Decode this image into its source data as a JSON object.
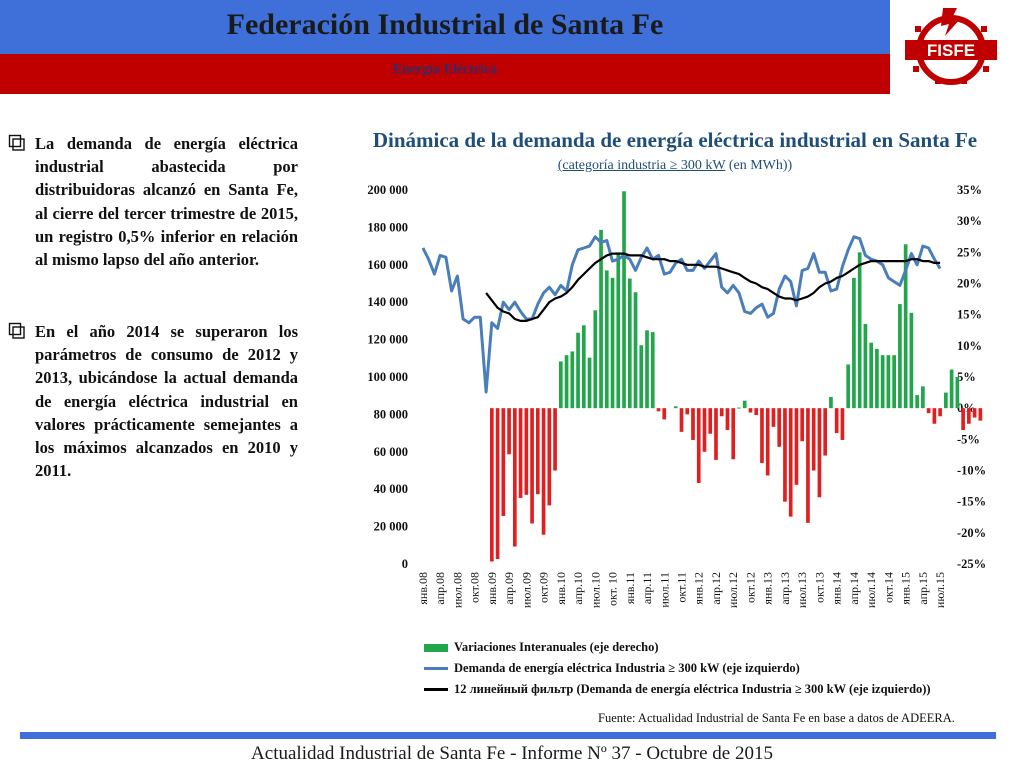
{
  "header": {
    "title": "Federación Industrial de Santa Fe",
    "subtitle": "Energía Eléctrica",
    "logo_text": "FISFE"
  },
  "paragraphs": [
    "La demanda de energía eléctrica industrial abastecida por distribuidoras alcanzó en Santa Fe, al cierre del tercer trimestre de 2015, un registro 0,5% inferior en relación al mismo lapso del año anterior.",
    "En el año 2014 se superaron los parámetros de consumo de 2012 y 2013, ubicándose la actual demanda de energía eléctrica industrial en valores prácticamente semejantes a los máximos alcanzados en 2010 y 2011."
  ],
  "chart_title": "Dinámica de la demanda de energía eléctrica industrial en Santa Fe",
  "chart_subtitle_underlined": "(categoría industria ≥ 300 kW",
  "chart_subtitle_rest": " (en MWh))",
  "legend": [
    "Variaciones Interanuales (eje derecho)",
    "Demanda de energía eléctrica Industria ≥ 300 kW (eje izquierdo)",
    "12 линейный фильтр (Demanda de energía eléctrica Industria ≥ 300 kW (eje izquierdo))"
  ],
  "source": "Fuente: Actualidad Industrial de Santa Fe en base a datos de ADEERA.",
  "footer": "Actualidad Industrial de Santa Fe - Informe Nº 37 - Octubre de 2015",
  "colors": {
    "bar_positive": "#21a64b",
    "bar_negative": "#e02020",
    "demand_line": "#4a7ebb",
    "filter_line": "#000000",
    "title": "#1f4e79"
  },
  "chart_data": {
    "type": "bar",
    "combo": [
      "bar",
      "line",
      "line"
    ],
    "x_tick_labels": [
      "янв.08",
      "апр.08",
      "июл.08",
      "окт.08",
      "янв.09",
      "апр.09",
      "июл.09",
      "окт.09",
      "янв.10",
      "апр.10",
      "июл.10",
      "окт. 10",
      "янв.11",
      "апр.11",
      "июл.11",
      "окт.11",
      "янв.12",
      "апр.12",
      "июл.12",
      "окт.12",
      "янв.13",
      "апр.13",
      "июл.13",
      "окт.13",
      "янв.14",
      "апр.14",
      "июл.14",
      "окт.14",
      "янв.15",
      "апр.15",
      "июл.15"
    ],
    "y_left": {
      "min": 0,
      "max": 200000,
      "step": 20000,
      "tick_labels": [
        "0",
        "20 000",
        "40 000",
        "60 000",
        "80 000",
        "100 000",
        "120 000",
        "140 000",
        "160 000",
        "180 000",
        "200 000"
      ]
    },
    "y_right": {
      "min": -25,
      "max": 35,
      "step": 5,
      "tick_labels": [
        "-25%",
        "-20%",
        "-15%",
        "-10%",
        "-5%",
        "0%",
        "5%",
        "10%",
        "15%",
        "20%",
        "25%",
        "30%",
        "35%"
      ]
    },
    "series": [
      {
        "name": "Variaciones Interanuales (eje derecho)",
        "axis": "right",
        "kind": "bar",
        "values": [
          null,
          null,
          null,
          null,
          null,
          null,
          null,
          null,
          null,
          null,
          null,
          null,
          -24.6,
          -24.2,
          -17.3,
          -7.4,
          -22.2,
          -14.4,
          -13.9,
          -18.5,
          -13.8,
          -20.3,
          -15.6,
          -10.0,
          7.5,
          8.5,
          9.1,
          12.1,
          13.3,
          8.1,
          15.7,
          28.6,
          22.1,
          20.9,
          25.0,
          34.8,
          20.8,
          18.6,
          10.1,
          12.5,
          12.2,
          -0.5,
          -1.8,
          0,
          0.3,
          -3.8,
          -1.0,
          -5.1,
          -12.0,
          -7.0,
          -4.1,
          -8.3,
          -1.3,
          -3.5,
          -8.2,
          0.1,
          1.2,
          -0.7,
          -1.1,
          -8.8,
          -10.8,
          -3.0,
          -6.2,
          -15.0,
          -17.4,
          -12.3,
          -5.3,
          -18.4,
          -10.0,
          -14.3,
          -7.6,
          1.8,
          -4.0,
          -5.1,
          7.0,
          20.9,
          25.0,
          13.5,
          10.5,
          9.5,
          8.5,
          8.5,
          8.5,
          16.7,
          26.3,
          15.3,
          2.1,
          3.5,
          -0.8,
          -2.5,
          -1.3,
          2.5,
          6.2,
          5.0,
          -3.5,
          -2.5,
          -1.5,
          -2.0
        ]
      },
      {
        "name": "Demanda de energía eléctrica Industria ≥ 300 kW (eje izquierdo)",
        "axis": "left",
        "kind": "line",
        "values": [
          169000,
          163000,
          155000,
          165000,
          164000,
          146000,
          154000,
          131000,
          129000,
          132000,
          132000,
          92000,
          129000,
          126000,
          140000,
          136000,
          140000,
          135000,
          131000,
          131000,
          139000,
          145000,
          148000,
          144000,
          149000,
          146000,
          160000,
          168000,
          169000,
          170000,
          175000,
          172000,
          173000,
          162000,
          163000,
          165000,
          163000,
          157000,
          164000,
          169000,
          163000,
          165000,
          155000,
          156000,
          161000,
          163000,
          157000,
          157000,
          162000,
          158000,
          162000,
          166000,
          148000,
          145000,
          149000,
          145000,
          135000,
          134000,
          137000,
          139000,
          132000,
          134000,
          147000,
          154000,
          151000,
          138000,
          157000,
          158000,
          166000,
          156000,
          156000,
          146000,
          147000,
          159000,
          168000,
          175000,
          174000,
          165000,
          163000,
          162000,
          160000,
          153000,
          151000,
          149000,
          157000,
          166000,
          160000,
          170000,
          169000,
          163000,
          158000
        ]
      },
      {
        "name": "12 линейный фильтр (Demanda de energía eléctrica Industria ≥ 300 kW (eje izquierdo))",
        "axis": "left",
        "kind": "line",
        "values": [
          null,
          null,
          null,
          null,
          null,
          null,
          null,
          null,
          null,
          null,
          null,
          145000,
          141000,
          137000,
          135000,
          134000,
          131000,
          130000,
          130000,
          131000,
          132000,
          136000,
          140000,
          142000,
          143000,
          145000,
          148000,
          152000,
          155000,
          158000,
          161000,
          163000,
          165000,
          166000,
          166000,
          166000,
          165000,
          165000,
          165000,
          164000,
          163000,
          163000,
          163000,
          162000,
          162000,
          161000,
          160000,
          160000,
          160000,
          159000,
          159000,
          159000,
          158000,
          157000,
          156000,
          155000,
          153000,
          151000,
          150000,
          148000,
          147000,
          145000,
          143000,
          142000,
          142000,
          141000,
          142000,
          143000,
          145000,
          148000,
          150000,
          151000,
          153000,
          154000,
          156000,
          158000,
          160000,
          161000,
          162000,
          162000,
          162000,
          162000,
          162000,
          162000,
          162000,
          163000,
          163000,
          162000,
          162000,
          161000,
          161000
        ]
      }
    ]
  }
}
